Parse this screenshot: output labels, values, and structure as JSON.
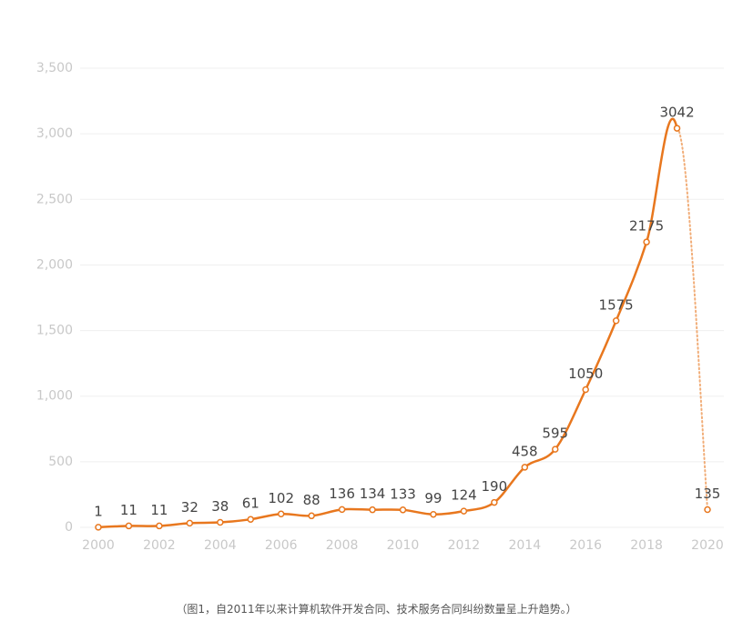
{
  "chart_data": {
    "type": "line",
    "x": [
      2000,
      2001,
      2002,
      2003,
      2004,
      2005,
      2006,
      2007,
      2008,
      2009,
      2010,
      2011,
      2012,
      2013,
      2014,
      2015,
      2016,
      2017,
      2018,
      2019,
      2020
    ],
    "series": [
      {
        "name": "纠纷数量",
        "color": "#e8771e",
        "values": [
          1,
          11,
          11,
          32,
          38,
          61,
          102,
          88,
          136,
          134,
          133,
          99,
          124,
          190,
          458,
          595,
          1050,
          1575,
          2175,
          3042,
          135
        ]
      }
    ],
    "xlim": [
      2000,
      2020
    ],
    "xticks": [
      2000,
      2002,
      2004,
      2006,
      2008,
      2010,
      2012,
      2014,
      2016,
      2018,
      2020
    ],
    "ylim": [
      0,
      3500
    ],
    "yticks": [
      0,
      500,
      {
        "value": 1000,
        "label": "1,000"
      },
      {
        "value": 1500,
        "label": "1,500"
      },
      {
        "value": 2000,
        "label": "2,000"
      },
      {
        "value": 2500,
        "label": "2,500"
      },
      {
        "value": 3000,
        "label": "3,000"
      },
      {
        "value": 3500,
        "label": "3,500"
      }
    ],
    "grid": true,
    "last_segment_style": "dotted",
    "legend": false
  },
  "caption": "（图1，自2011年以来计算机软件开发合同、技术服务合同纠纷数量呈上升趋势。）"
}
